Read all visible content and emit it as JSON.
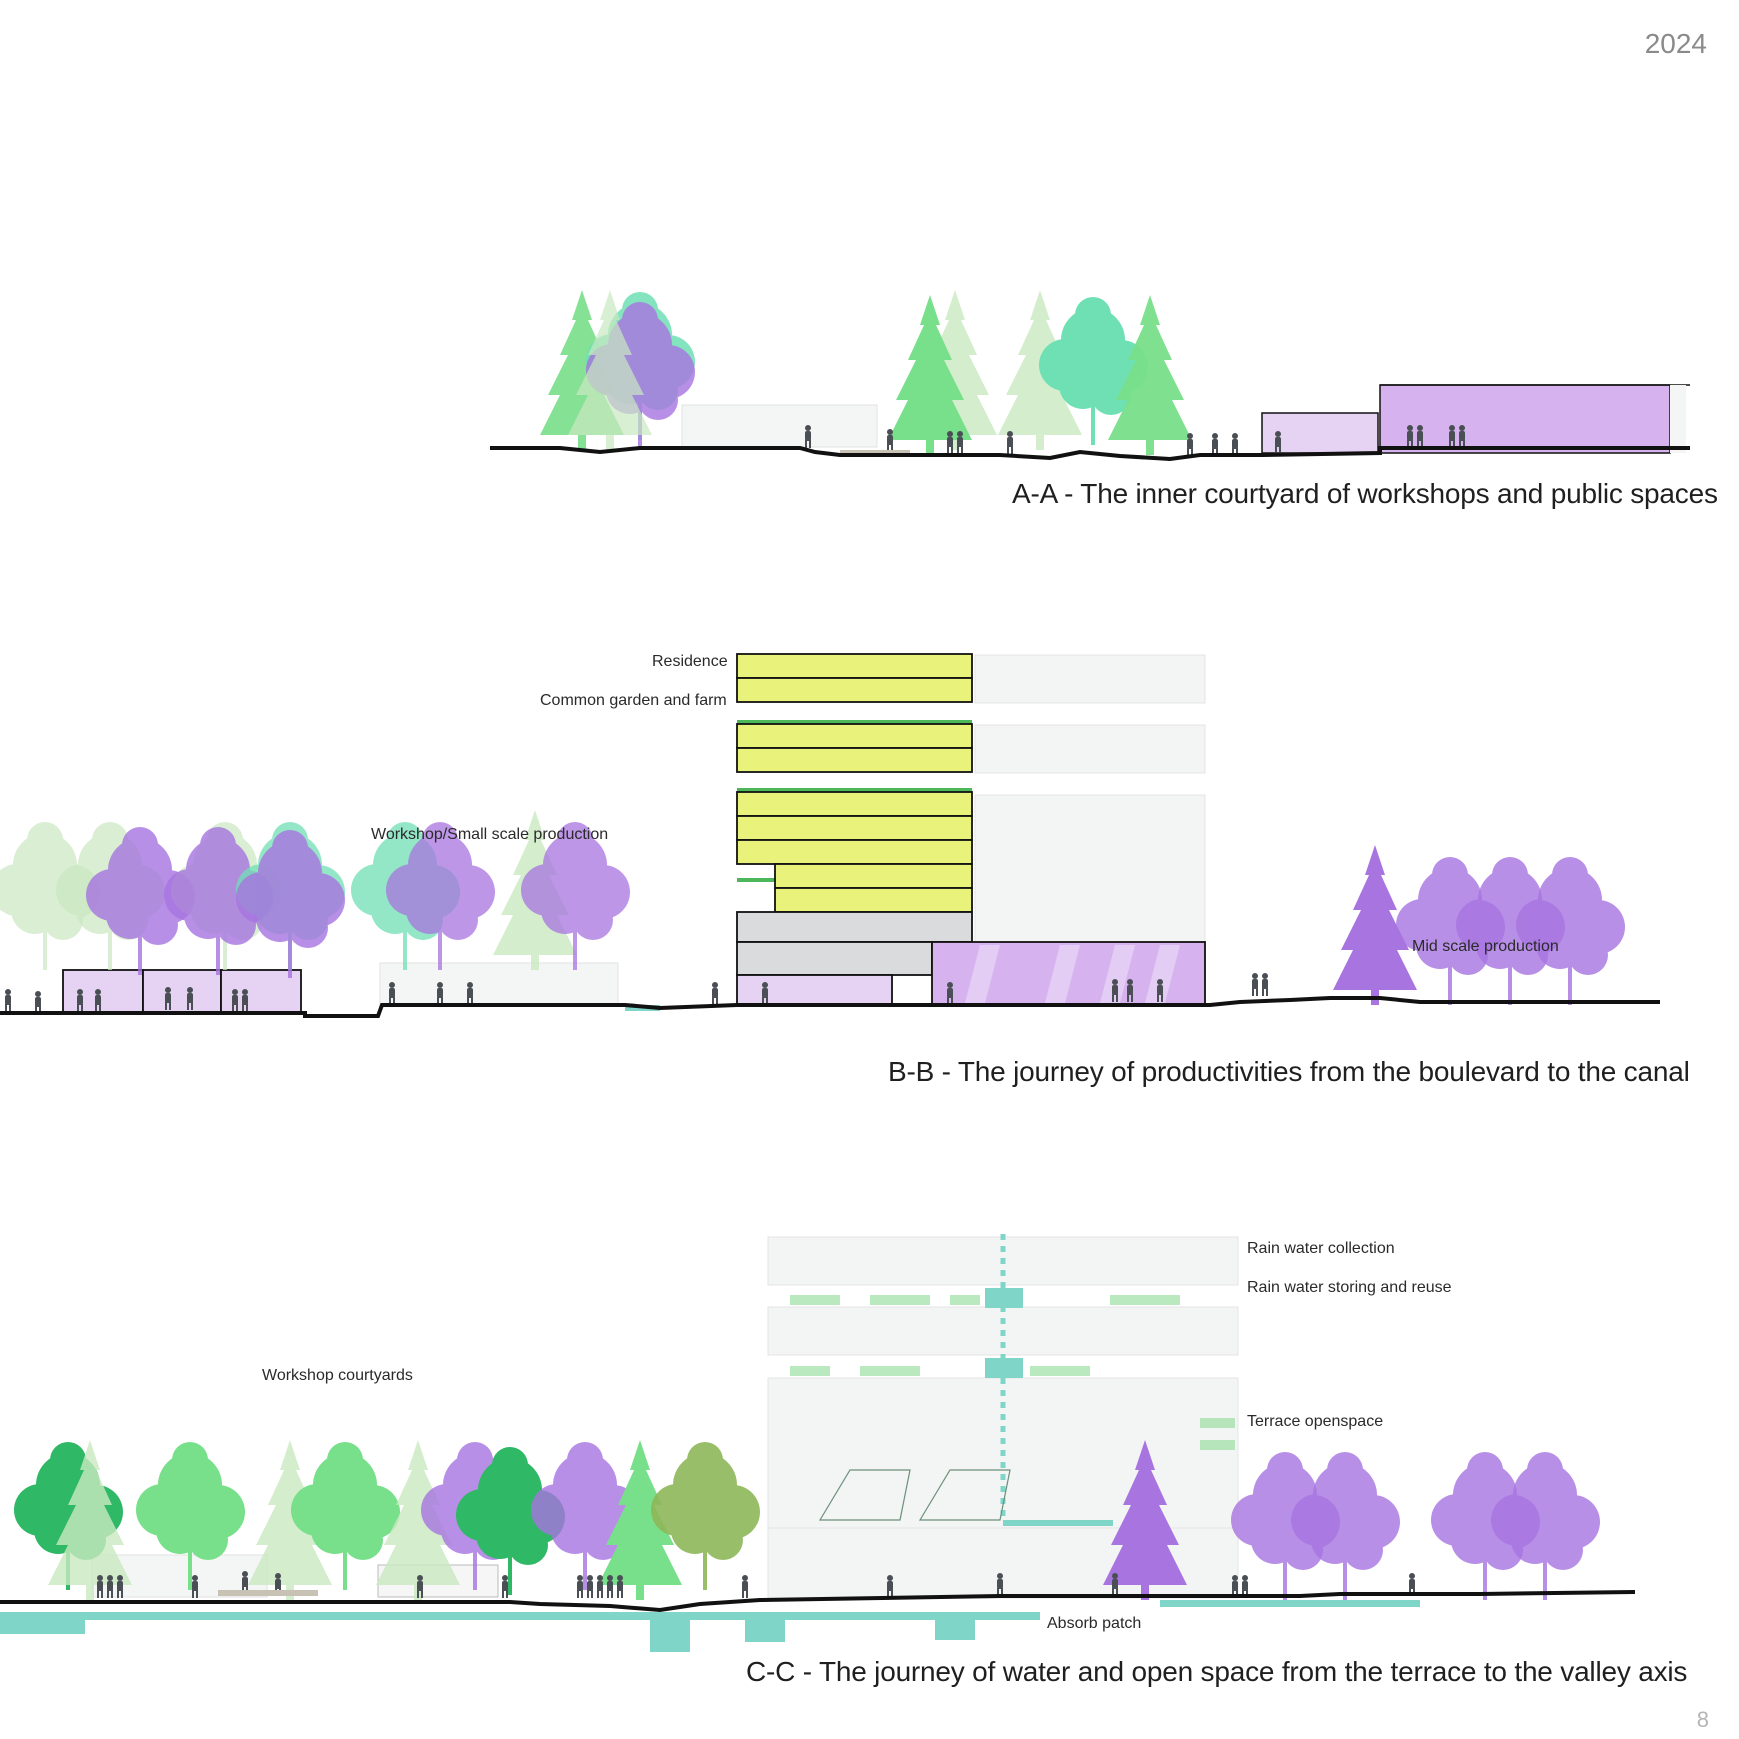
{
  "header": {
    "year": "2024"
  },
  "footer": {
    "page_number": "8"
  },
  "sections": {
    "aa": {
      "caption": "A-A - The inner courtyard of workshops and public spaces"
    },
    "bb": {
      "caption": "B-B - The journey of productivities from the boulevard to the canal",
      "labels": {
        "residence": "Residence",
        "garden": "Common garden and farm",
        "workshop": "Workshop/Small scale production",
        "mid": "Mid scale production"
      }
    },
    "cc": {
      "caption": "C-C - The journey of water and open space from the terrace to the valley axis",
      "labels": {
        "rain_collection": "Rain water collection",
        "rain_storing": "Rain water storing and reuse",
        "workshop_courtyards": "Workshop courtyards",
        "terrace": "Terrace openspace",
        "absorb": "Absorb patch"
      }
    }
  },
  "colors": {
    "ground": "#111111",
    "residence_yellow": "#e9f27a",
    "roof_green": "#4cb85a",
    "production_purple": "#d6b3ef",
    "grey_block": "#d9dbdc",
    "ghost_building": "#f2f3f3",
    "water": "#7fd6c8",
    "tree_green": "#78df8a",
    "tree_light": "#c9e8c0",
    "tree_teal": "#6fe0b4",
    "tree_purple": "#a774e0",
    "people": "#4a4f55"
  }
}
